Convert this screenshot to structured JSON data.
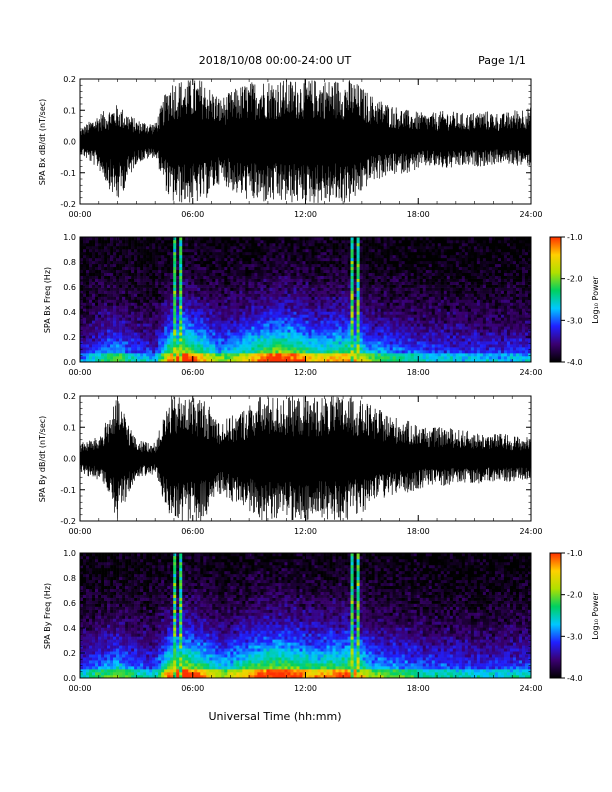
{
  "header": {
    "title": "2018/10/08  00:00-24:00 UT",
    "page": "Page 1/1"
  },
  "footer": {
    "xlabel": "Universal Time (hh:mm)"
  },
  "colorbar": {
    "label": "Log₁₀ Power",
    "ticks": [
      "-1.0",
      "-2.0",
      "-3.0",
      "-4.0"
    ],
    "range": [
      -4.0,
      -1.0
    ],
    "colors": [
      "#000000",
      "#3a0070",
      "#2020ff",
      "#00c8ff",
      "#00d060",
      "#b0e000",
      "#ffd000",
      "#ff3000"
    ]
  },
  "colors": {
    "axis": "#000000",
    "trace": "#000000",
    "background": "#ffffff"
  },
  "chart_data": [
    {
      "type": "line",
      "panel": "bx_timeseries",
      "ylabel": "SPA Bx dB/dt (nT/sec)",
      "xlim": [
        0,
        24
      ],
      "ylim": [
        -0.2,
        0.2
      ],
      "y_ticks": [
        "0.2",
        "0.1",
        "0.0",
        "-0.1",
        "-0.2"
      ],
      "x_ticks": [
        "00:00",
        "06:00",
        "12:00",
        "18:00",
        "24:00"
      ],
      "series": [
        {
          "x_hours": [
            0,
            1,
            2,
            3,
            4,
            4.8,
            5.5,
            6.5,
            7.5,
            8.5,
            9.5,
            10.5,
            11.5,
            12.5,
            13.5,
            14.5,
            15.5,
            16.5,
            17.5,
            18.5,
            19.5,
            20.5,
            21.5,
            22.5,
            23.5
          ],
          "envelope_max": [
            0.04,
            0.09,
            0.12,
            0.07,
            0.06,
            0.2,
            0.2,
            0.2,
            0.14,
            0.18,
            0.2,
            0.2,
            0.2,
            0.2,
            0.2,
            0.2,
            0.15,
            0.12,
            0.1,
            0.09,
            0.1,
            0.09,
            0.1,
            0.09,
            0.11
          ],
          "envelope_min": [
            -0.04,
            -0.09,
            -0.2,
            -0.07,
            -0.05,
            -0.2,
            -0.2,
            -0.2,
            -0.13,
            -0.18,
            -0.2,
            -0.2,
            -0.2,
            -0.2,
            -0.2,
            -0.2,
            -0.13,
            -0.11,
            -0.1,
            -0.08,
            -0.09,
            -0.08,
            -0.08,
            -0.07,
            -0.08
          ]
        }
      ]
    },
    {
      "type": "heatmap",
      "panel": "bx_spectrogram",
      "ylabel": "SPA Bx Freq (Hz)",
      "xlim": [
        0,
        24
      ],
      "ylim": [
        0.0,
        1.0
      ],
      "y_ticks": [
        "1.0",
        "0.8",
        "0.6",
        "0.4",
        "0.2",
        "0.0"
      ],
      "x_ticks": [
        "00:00",
        "06:00",
        "12:00",
        "18:00",
        "24:00"
      ],
      "activity_hours": [
        0,
        1,
        2,
        3,
        4,
        4.8,
        5.5,
        6.5,
        7.5,
        8.5,
        9.5,
        10.5,
        11.5,
        12.5,
        13.5,
        14.5,
        15.5,
        16.5,
        17.5,
        18.5,
        19.5,
        20.5,
        21.5,
        22.5,
        23.5
      ],
      "activity_level": [
        0.3,
        0.45,
        0.55,
        0.4,
        0.35,
        0.8,
        0.95,
        0.75,
        0.55,
        0.65,
        0.8,
        0.9,
        0.85,
        0.7,
        0.75,
        0.8,
        0.55,
        0.5,
        0.45,
        0.4,
        0.4,
        0.38,
        0.38,
        0.36,
        0.38
      ],
      "bright_columns_hours": [
        5.1,
        5.4,
        14.5,
        14.8
      ]
    },
    {
      "type": "line",
      "panel": "by_timeseries",
      "ylabel": "SPA By dB/dt (nT/sec)",
      "xlim": [
        0,
        24
      ],
      "ylim": [
        -0.2,
        0.2
      ],
      "y_ticks": [
        "0.2",
        "0.1",
        "0.0",
        "-0.1",
        "-0.2"
      ],
      "x_ticks": [
        "00:00",
        "06:00",
        "12:00",
        "18:00",
        "24:00"
      ],
      "series": [
        {
          "x_hours": [
            0,
            1,
            2,
            3,
            4,
            4.8,
            5.5,
            6.5,
            7.5,
            8.5,
            9.5,
            10.5,
            11.5,
            12.5,
            13.5,
            14.5,
            15.5,
            16.5,
            17.5,
            18.5,
            19.5,
            20.5,
            21.5,
            22.5,
            23.5
          ],
          "envelope_max": [
            0.05,
            0.07,
            0.2,
            0.06,
            0.05,
            0.2,
            0.2,
            0.2,
            0.12,
            0.15,
            0.2,
            0.2,
            0.2,
            0.2,
            0.2,
            0.2,
            0.17,
            0.14,
            0.12,
            0.1,
            0.1,
            0.09,
            0.08,
            0.08,
            0.07
          ],
          "envelope_min": [
            -0.05,
            -0.07,
            -0.2,
            -0.06,
            -0.05,
            -0.2,
            -0.2,
            -0.2,
            -0.12,
            -0.15,
            -0.2,
            -0.2,
            -0.2,
            -0.2,
            -0.2,
            -0.2,
            -0.15,
            -0.12,
            -0.11,
            -0.09,
            -0.09,
            -0.08,
            -0.08,
            -0.08,
            -0.07
          ]
        }
      ]
    },
    {
      "type": "heatmap",
      "panel": "by_spectrogram",
      "ylabel": "SPA By Freq (Hz)",
      "xlim": [
        0,
        24
      ],
      "ylim": [
        0.0,
        1.0
      ],
      "y_ticks": [
        "1.0",
        "0.8",
        "0.6",
        "0.4",
        "0.2",
        "0.0"
      ],
      "x_ticks": [
        "00:00",
        "06:00",
        "12:00",
        "18:00",
        "24:00"
      ],
      "activity_hours": [
        0,
        1,
        2,
        3,
        4,
        4.8,
        5.5,
        6.5,
        7.5,
        8.5,
        9.5,
        10.5,
        11.5,
        12.5,
        13.5,
        14.5,
        15.5,
        16.5,
        17.5,
        18.5,
        19.5,
        20.5,
        21.5,
        22.5,
        23.5
      ],
      "activity_level": [
        0.4,
        0.5,
        0.6,
        0.45,
        0.4,
        0.85,
        0.95,
        0.8,
        0.6,
        0.7,
        0.85,
        0.9,
        0.85,
        0.75,
        0.8,
        0.85,
        0.6,
        0.55,
        0.5,
        0.45,
        0.45,
        0.42,
        0.4,
        0.4,
        0.42
      ],
      "bright_columns_hours": [
        5.1,
        5.4,
        14.5,
        14.8
      ]
    }
  ]
}
